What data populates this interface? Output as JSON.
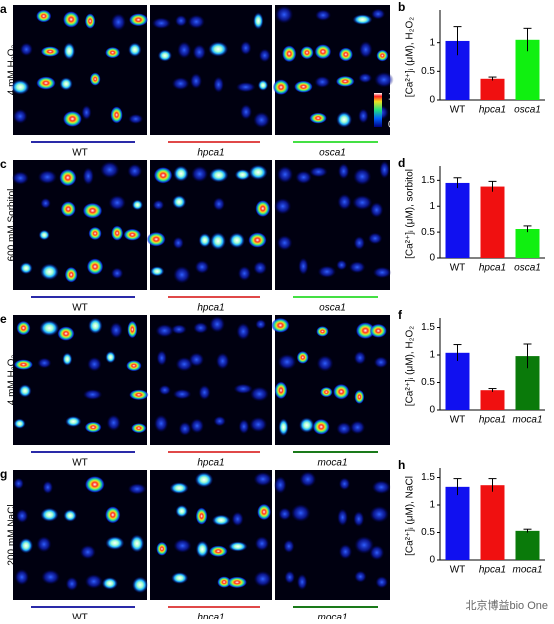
{
  "panels": [
    {
      "letter": "a",
      "condition": "4 mM H₂O₂",
      "genotypes": [
        {
          "name": "WT",
          "color": "#2a2aa8"
        },
        {
          "name": "hpca1",
          "color": "#e04848"
        },
        {
          "name": "osca1",
          "color": "#44e044"
        }
      ],
      "colorbar": {
        "max": "1",
        "min": "0"
      }
    },
    {
      "letter": "c",
      "condition": "600 mM Sorbitol",
      "genotypes": [
        {
          "name": "WT",
          "color": "#2a2aa8"
        },
        {
          "name": "hpca1",
          "color": "#e04848"
        },
        {
          "name": "osca1",
          "color": "#44e044"
        }
      ]
    },
    {
      "letter": "e",
      "condition": "4 mM H₂O₂",
      "genotypes": [
        {
          "name": "WT",
          "color": "#2a2aa8"
        },
        {
          "name": "hpca1",
          "color": "#e04848"
        },
        {
          "name": "moca1",
          "color": "#1a7a1a"
        }
      ]
    },
    {
      "letter": "g",
      "condition": "200 mM NaCl",
      "genotypes": [
        {
          "name": "WT",
          "color": "#2a2aa8"
        },
        {
          "name": "hpca1",
          "color": "#e04848"
        },
        {
          "name": "moca1",
          "color": "#1a7a1a"
        }
      ]
    }
  ],
  "chart_data": [
    {
      "type": "bar",
      "letter": "b",
      "ylabel": "[Ca²⁺]ᵢ (μM), H₂O₂",
      "categories": [
        "WT",
        "hpca1",
        "osca1"
      ],
      "values": [
        1.03,
        0.37,
        1.05
      ],
      "errors": [
        0.25,
        0.03,
        0.2
      ],
      "colors": [
        "#1010f0",
        "#f01010",
        "#10f010"
      ],
      "ylim": [
        0,
        1.5
      ],
      "yticks": [
        0,
        0.5,
        1
      ]
    },
    {
      "type": "bar",
      "letter": "d",
      "ylabel": "[Ca²⁺]ᵢ (μM), sorbitol",
      "categories": [
        "WT",
        "hpca1",
        "osca1"
      ],
      "values": [
        1.45,
        1.38,
        0.56
      ],
      "errors": [
        0.1,
        0.1,
        0.06
      ],
      "colors": [
        "#1010f0",
        "#f01010",
        "#10f010"
      ],
      "ylim": [
        0,
        1.7
      ],
      "yticks": [
        0,
        0.5,
        1,
        1.5
      ]
    },
    {
      "type": "bar",
      "letter": "f",
      "ylabel": "[Ca²⁺]ᵢ (μM), H₂O₂",
      "categories": [
        "WT",
        "hpca1",
        "moca1"
      ],
      "values": [
        1.04,
        0.36,
        0.98
      ],
      "errors": [
        0.15,
        0.03,
        0.22
      ],
      "colors": [
        "#1010f0",
        "#f01010",
        "#0a7a0a"
      ],
      "ylim": [
        0,
        1.6
      ],
      "yticks": [
        0,
        0.5,
        1,
        1.5
      ]
    },
    {
      "type": "bar",
      "letter": "h",
      "ylabel": "[Ca²⁺]ᵢ (μM), NaCl",
      "categories": [
        "WT",
        "hpca1",
        "moca1"
      ],
      "values": [
        1.33,
        1.36,
        0.53
      ],
      "errors": [
        0.15,
        0.12,
        0.03
      ],
      "colors": [
        "#1010f0",
        "#f01010",
        "#0a7a0a"
      ],
      "ylim": [
        0,
        1.6
      ],
      "yticks": [
        0,
        0.5,
        1,
        1.5
      ]
    }
  ],
  "watermark": "北京博益bio One"
}
